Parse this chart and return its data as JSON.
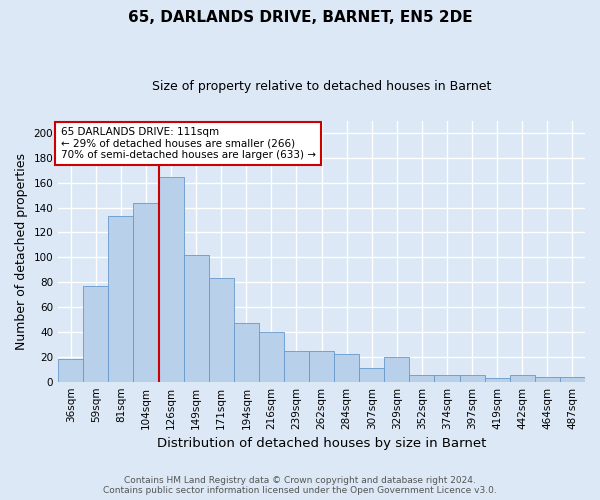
{
  "title": "65, DARLANDS DRIVE, BARNET, EN5 2DE",
  "subtitle": "Size of property relative to detached houses in Barnet",
  "xlabel": "Distribution of detached houses by size in Barnet",
  "ylabel": "Number of detached properties",
  "categories": [
    "36sqm",
    "59sqm",
    "81sqm",
    "104sqm",
    "126sqm",
    "149sqm",
    "171sqm",
    "194sqm",
    "216sqm",
    "239sqm",
    "262sqm",
    "284sqm",
    "307sqm",
    "329sqm",
    "352sqm",
    "374sqm",
    "397sqm",
    "419sqm",
    "442sqm",
    "464sqm",
    "487sqm"
  ],
  "values": [
    18,
    77,
    133,
    144,
    165,
    102,
    83,
    47,
    40,
    25,
    25,
    22,
    11,
    20,
    5,
    5,
    5,
    3,
    5,
    4,
    4
  ],
  "bar_color": "#b8d0ea",
  "bar_edge_color": "#6699cc",
  "background_color": "#dce8f5",
  "grid_color": "#ffffff",
  "red_line_x": 3.5,
  "annotation_text": "65 DARLANDS DRIVE: 111sqm\n← 29% of detached houses are smaller (266)\n70% of semi-detached houses are larger (633) →",
  "annotation_box_facecolor": "#ffffff",
  "annotation_box_edgecolor": "#cc0000",
  "footer_text": "Contains HM Land Registry data © Crown copyright and database right 2024.\nContains public sector information licensed under the Open Government Licence v3.0.",
  "ylim": [
    0,
    210
  ],
  "yticks": [
    0,
    20,
    40,
    60,
    80,
    100,
    120,
    140,
    160,
    180,
    200
  ],
  "title_fontsize": 11,
  "subtitle_fontsize": 9,
  "ylabel_fontsize": 9,
  "xlabel_fontsize": 9.5,
  "tick_fontsize": 7.5,
  "footer_fontsize": 6.5,
  "ann_fontsize": 7.5
}
